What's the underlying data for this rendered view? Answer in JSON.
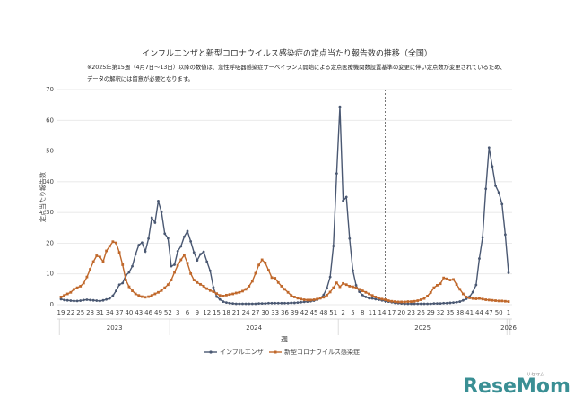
{
  "chart_data": {
    "type": "line",
    "title": "インフルエンザと新型コロナウイルス感染症の定点当たり報告数の推移（全国）",
    "notes": [
      "※2025年第15週（4月7日〜13日）以降の数値は、急性呼吸器感染症サーベイランス開始による定点医療機関数設置基準の変更に伴い定点数が変更されているため、",
      "データの解釈には留意が必要となります。"
    ],
    "x_label": "週",
    "y_label": "定点当たり報告数",
    "categories": [
      "19",
      null,
      null,
      "22",
      null,
      null,
      "25",
      null,
      null,
      "28",
      null,
      null,
      "31",
      null,
      null,
      "34",
      null,
      null,
      "37",
      null,
      null,
      "40",
      null,
      null,
      "43",
      null,
      null,
      "46",
      null,
      null,
      "49",
      null,
      null,
      "52",
      null,
      null,
      "3",
      null,
      null,
      "6",
      null,
      null,
      "9",
      null,
      null,
      "12",
      null,
      null,
      "15",
      null,
      null,
      "18",
      null,
      null,
      "21",
      null,
      null,
      "24",
      null,
      null,
      "27",
      null,
      null,
      "30",
      null,
      null,
      "33",
      null,
      null,
      "36",
      null,
      null,
      "39",
      null,
      null,
      "42",
      null,
      null,
      "45",
      null,
      null,
      "48",
      null,
      null,
      "51",
      null,
      null,
      "2",
      null,
      null,
      "5",
      null,
      null,
      "8",
      null,
      null,
      "11",
      null,
      null,
      "14",
      null,
      null,
      "17",
      null,
      null,
      "20",
      null,
      null,
      "23",
      null,
      null,
      "26",
      null,
      null,
      "29",
      null,
      null,
      "32",
      null,
      null,
      "35",
      null,
      null,
      "38",
      null,
      null,
      "41",
      null,
      null,
      "44",
      null,
      null,
      "47",
      null,
      null,
      "50",
      null,
      null,
      "1"
    ],
    "year_groups": [
      {
        "label": "2023",
        "weeks": 34
      },
      {
        "label": "2024",
        "weeks": 52
      },
      {
        "label": "2025",
        "weeks": 52
      },
      {
        "label": "2026",
        "weeks": 1
      }
    ],
    "reference_line": {
      "category_index": 100
    },
    "ylim": [
      0,
      70
    ],
    "yticks": [
      0,
      10,
      20,
      30,
      40,
      50,
      60,
      70
    ],
    "grid": true,
    "series": [
      {
        "name": "インフルエンザ",
        "color": "#4a5872",
        "marker": "circle",
        "values": [
          1.8,
          1.5,
          1.4,
          1.3,
          1.2,
          1.2,
          1.3,
          1.5,
          1.6,
          1.5,
          1.4,
          1.3,
          1.2,
          1.4,
          1.7,
          2.0,
          2.9,
          4.5,
          6.5,
          7.0,
          9.5,
          10.5,
          12.5,
          16.4,
          19.4,
          20.2,
          17.3,
          21.5,
          28.3,
          26.7,
          33.7,
          30.1,
          23.1,
          21.6,
          12.5,
          13.0,
          17.4,
          19.0,
          22.1,
          23.9,
          20.6,
          17.0,
          14.4,
          16.4,
          17.2,
          14.0,
          11.0,
          5.6,
          2.6,
          1.7,
          1.0,
          0.7,
          0.5,
          0.4,
          0.3,
          0.3,
          0.3,
          0.3,
          0.3,
          0.3,
          0.3,
          0.4,
          0.4,
          0.4,
          0.5,
          0.5,
          0.5,
          0.5,
          0.5,
          0.5,
          0.5,
          0.6,
          0.6,
          0.7,
          0.8,
          0.9,
          1.0,
          1.1,
          1.3,
          1.6,
          2.1,
          3.2,
          5.4,
          9.0,
          19.1,
          42.7,
          64.4,
          33.8,
          35.0,
          21.5,
          11.1,
          6.3,
          4.2,
          3.1,
          2.5,
          2.1,
          2.0,
          1.8,
          1.6,
          1.4,
          1.2,
          1.0,
          0.8,
          0.6,
          0.5,
          0.4,
          0.3,
          0.3,
          0.3,
          0.3,
          0.3,
          0.3,
          0.3,
          0.3,
          0.3,
          0.4,
          0.4,
          0.4,
          0.5,
          0.5,
          0.6,
          0.7,
          0.8,
          1.0,
          1.4,
          1.9,
          2.6,
          4.1,
          6.4,
          15.0,
          21.9,
          37.7,
          51.1,
          45.0,
          38.7,
          36.5,
          32.7,
          22.8,
          10.4
        ]
      },
      {
        "name": "新型コロナウイルス感染症",
        "color": "#c0682b",
        "marker": "square",
        "values": [
          2.5,
          3.0,
          3.5,
          4.0,
          5.0,
          5.5,
          6.0,
          7.0,
          9.0,
          11.5,
          14.0,
          15.9,
          15.5,
          14.0,
          17.5,
          19.0,
          20.5,
          20.1,
          17.0,
          13.0,
          8.0,
          5.8,
          4.5,
          3.5,
          3.0,
          2.6,
          2.4,
          2.6,
          3.0,
          3.5,
          4.0,
          4.6,
          5.5,
          6.5,
          8.0,
          10.5,
          12.8,
          14.6,
          16.1,
          13.5,
          10.1,
          8.0,
          7.2,
          6.6,
          6.0,
          5.2,
          4.6,
          4.2,
          3.6,
          3.0,
          2.8,
          3.1,
          3.3,
          3.5,
          3.8,
          4.0,
          4.4,
          5.0,
          6.0,
          7.6,
          10.2,
          12.9,
          14.6,
          13.6,
          11.2,
          8.8,
          8.6,
          7.2,
          6.0,
          5.0,
          4.0,
          3.0,
          2.5,
          2.1,
          1.8,
          1.6,
          1.5,
          1.5,
          1.6,
          1.8,
          2.1,
          2.4,
          3.1,
          4.1,
          5.5,
          7.1,
          5.8,
          6.9,
          6.5,
          6.0,
          5.8,
          5.5,
          5.0,
          4.5,
          4.0,
          3.5,
          3.0,
          2.5,
          2.1,
          1.8,
          1.6,
          1.3,
          1.1,
          1.0,
          0.9,
          0.9,
          0.9,
          1.0,
          1.0,
          1.1,
          1.3,
          1.6,
          2.0,
          2.8,
          4.0,
          5.5,
          6.3,
          6.8,
          8.7,
          8.4,
          8.0,
          8.2,
          6.5,
          5.0,
          3.5,
          2.5,
          2.2,
          2.0,
          1.9,
          2.0,
          1.8,
          1.6,
          1.5,
          1.4,
          1.3,
          1.2,
          1.2,
          1.1,
          1.0
        ]
      }
    ],
    "watermark": "ReseMom",
    "watermark_sub": "リセマム"
  }
}
